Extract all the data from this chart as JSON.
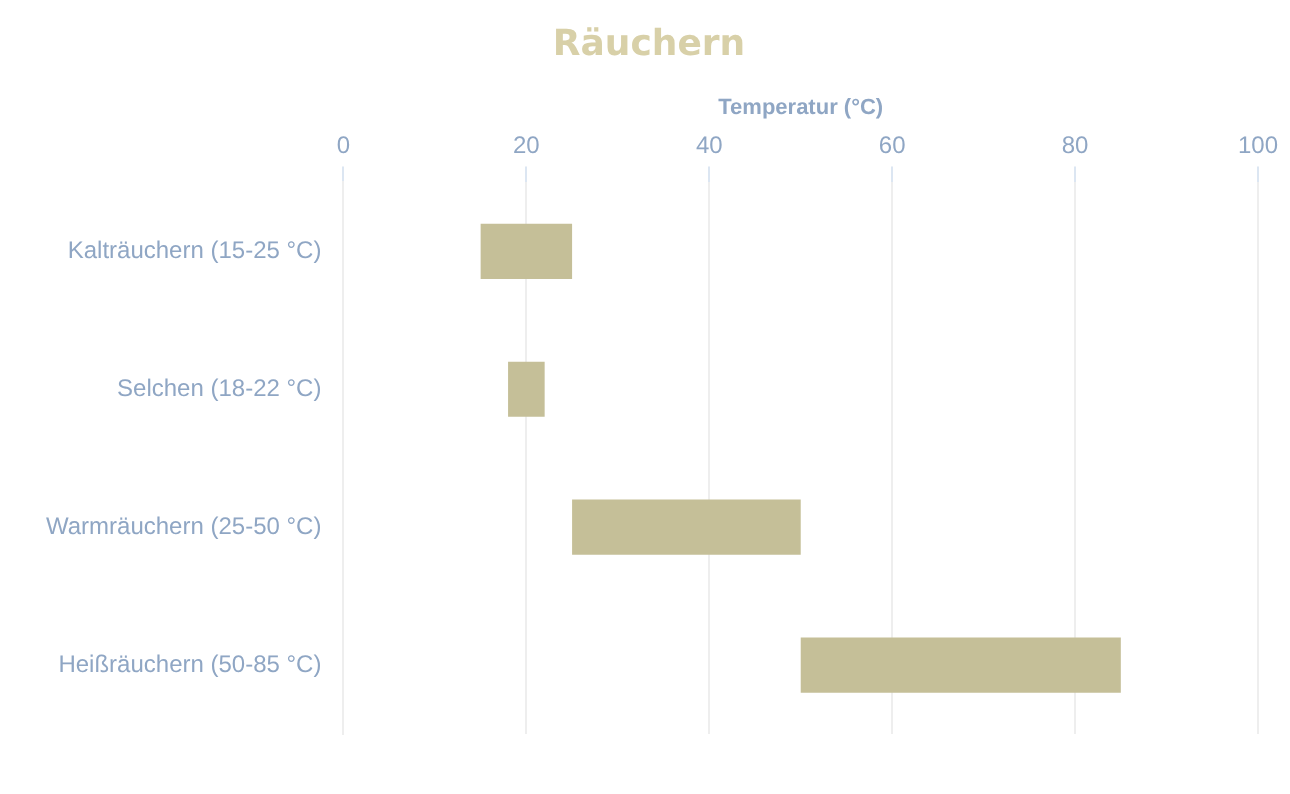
{
  "chart_data": {
    "type": "bar",
    "title": "Räuchern",
    "xlabel": "Temperatur (°C)",
    "orientation": "horizontal",
    "categories": [
      "Kalträuchern (15-25 °C)",
      "Selchen (18-22 °C)",
      "Warmräuchern (25-50 °C)",
      "Heißräuchern (50-85 °C)"
    ],
    "base": [
      15,
      18,
      25,
      50
    ],
    "values": [
      10,
      4,
      25,
      35
    ],
    "color": "#c5bf98",
    "xlim": [
      0,
      100
    ],
    "xticks": [
      0,
      20,
      40,
      60,
      80,
      100
    ],
    "grid": "x"
  }
}
